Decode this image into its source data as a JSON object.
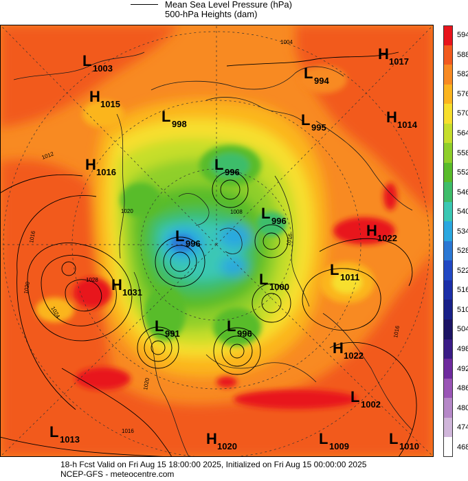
{
  "legend": {
    "line1": "Mean Sea Level Pressure (hPa)",
    "line2": "500-hPa Heights (dam)"
  },
  "colorbar": {
    "labels": [
      "594",
      "588",
      "582",
      "576",
      "570",
      "564",
      "558",
      "552",
      "546",
      "540",
      "534",
      "528",
      "522",
      "516",
      "510",
      "504",
      "498",
      "492",
      "486",
      "480",
      "474",
      "468"
    ],
    "colors": [
      "#e8141c",
      "#f25a1e",
      "#f88a22",
      "#fbb51f",
      "#f7df2d",
      "#c6de2c",
      "#8fcf2a",
      "#59bc2a",
      "#3ebd6a",
      "#3ac8b4",
      "#2aa8e0",
      "#2a78d4",
      "#2148c4",
      "#1b2ea8",
      "#182088",
      "#1c1464",
      "#3a1c86",
      "#6e2a9e",
      "#9a55b6",
      "#b688c8",
      "#d0b6da",
      "#ffffff"
    ]
  },
  "pressure_labels": [
    {
      "letter": "L",
      "value": "1003"
    },
    {
      "letter": "H",
      "value": "1015"
    },
    {
      "letter": "L",
      "value": "998"
    },
    {
      "letter": "L",
      "value": "994"
    },
    {
      "letter": "H",
      "value": "1017"
    },
    {
      "letter": "L",
      "value": "995"
    },
    {
      "letter": "H",
      "value": "1014"
    },
    {
      "letter": "H",
      "value": "1016"
    },
    {
      "letter": "L",
      "value": "996"
    },
    {
      "letter": "L",
      "value": "996"
    },
    {
      "letter": "L",
      "value": "996"
    },
    {
      "letter": "H",
      "value": "1022"
    },
    {
      "letter": "L",
      "value": "1000"
    },
    {
      "letter": "L",
      "value": "1011"
    },
    {
      "letter": "H",
      "value": "1031"
    },
    {
      "letter": "L",
      "value": "991"
    },
    {
      "letter": "L",
      "value": "996"
    },
    {
      "letter": "H",
      "value": "1022"
    },
    {
      "letter": "L",
      "value": "1002"
    },
    {
      "letter": "L",
      "value": "1013"
    },
    {
      "letter": "H",
      "value": "1020"
    },
    {
      "letter": "L",
      "value": "1009"
    },
    {
      "letter": "L",
      "value": "1010"
    }
  ],
  "contour_labels": [
    "1004",
    "1012",
    "1016",
    "1020",
    "1024",
    "1028",
    "1020",
    "1008",
    "1016",
    "1016",
    "1020",
    "1016"
  ],
  "footer": {
    "line1": "18-h Fcst Valid on Fri Aug 15 18:00:00 2025, Initialized on Fri Aug 15 00:00:00 2025",
    "line2": "NCEP-GFS - meteocentre.com"
  }
}
